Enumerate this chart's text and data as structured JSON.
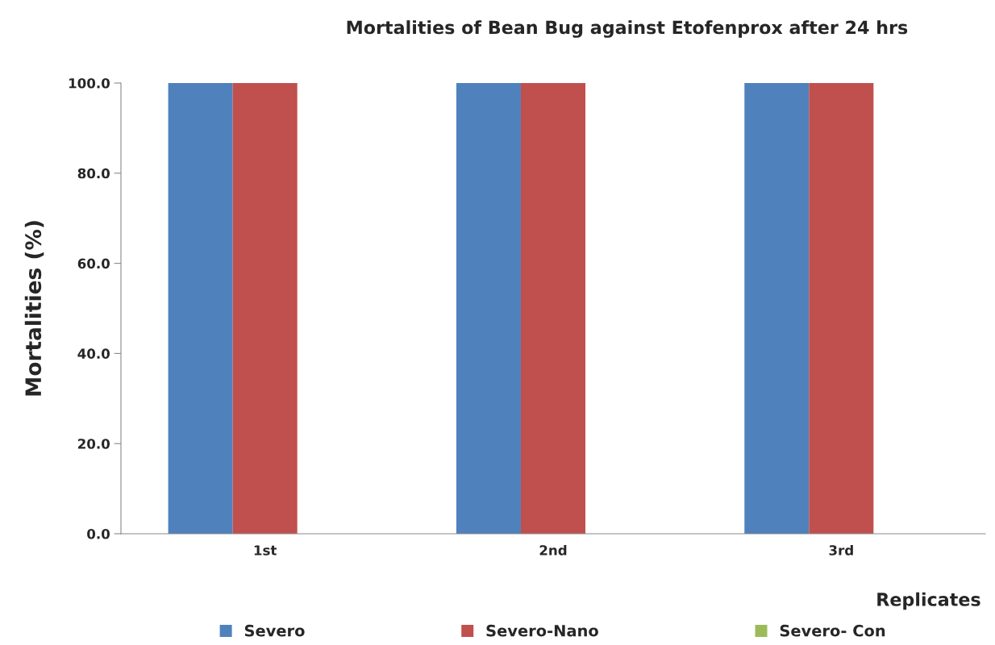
{
  "chart_data": {
    "type": "bar",
    "title": "Mortalities of Bean Bug against Etofenprox after 24 hrs",
    "xlabel": "Replicates",
    "ylabel": "Mortalities (%)",
    "categories": [
      "1st",
      "2nd",
      "3rd"
    ],
    "series": [
      {
        "name": "Severo",
        "color": "#4f81bd",
        "values": [
          100,
          100,
          100
        ]
      },
      {
        "name": "Severo-Nano",
        "color": "#c0504d",
        "values": [
          100,
          100,
          100
        ]
      },
      {
        "name": "Severo- Con",
        "color": "#9bbb59",
        "values": [
          0,
          0,
          0
        ]
      }
    ],
    "ylim": [
      0,
      100
    ],
    "yticks": [
      {
        "value": 0,
        "label": "0.0"
      },
      {
        "value": 20,
        "label": "20.0"
      },
      {
        "value": 40,
        "label": "40.0"
      },
      {
        "value": 60,
        "label": "60.0"
      },
      {
        "value": 80,
        "label": "80.0"
      },
      {
        "value": 100,
        "label": "100.0"
      }
    ],
    "grid": false,
    "legend": "bottom"
  }
}
